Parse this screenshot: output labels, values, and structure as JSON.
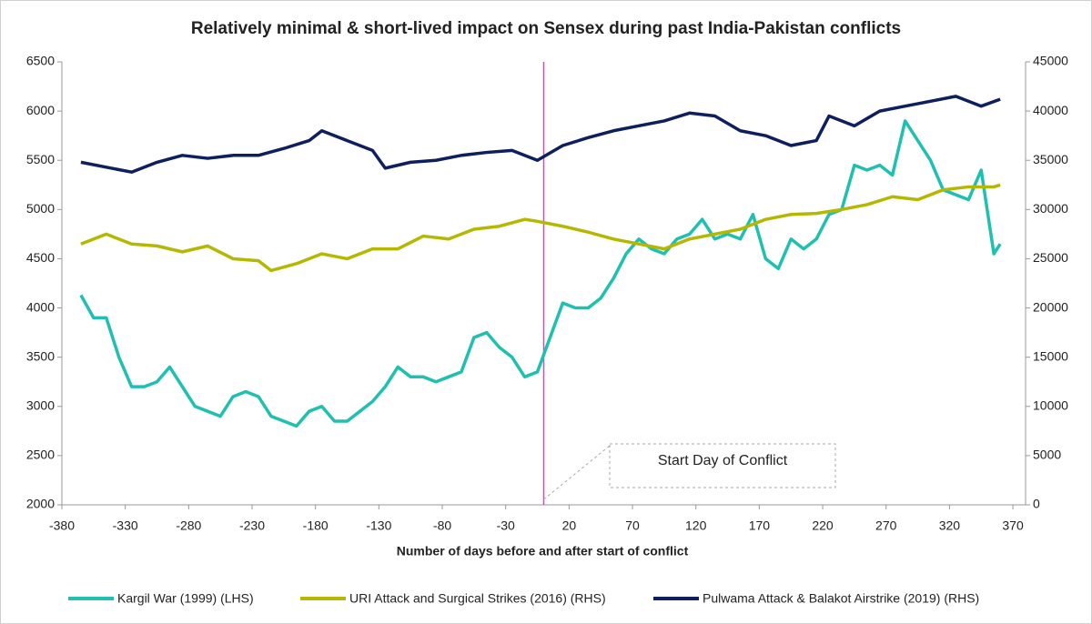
{
  "chart_data": {
    "type": "line",
    "title": "Relatively minimal & short-lived impact on Sensex during past India-Pakistan conflicts",
    "x_label": "Number of days before and after start of conflict",
    "annotation": {
      "text": "Start Day of Conflict",
      "x": 0,
      "color": "#e040d0"
    },
    "xlim": [
      -380,
      380
    ],
    "xticks": [
      -380,
      -330,
      -280,
      -230,
      -180,
      -130,
      -80,
      -30,
      20,
      70,
      120,
      170,
      220,
      270,
      320,
      370
    ],
    "ylim": [
      2000,
      6500
    ],
    "yticks": [
      2000,
      2500,
      3000,
      3500,
      4000,
      4500,
      5000,
      5500,
      6000,
      6500
    ],
    "y2lim": [
      0,
      45000
    ],
    "y2ticks": [
      0,
      5000,
      10000,
      15000,
      20000,
      25000,
      30000,
      35000,
      40000,
      45000
    ],
    "legend": "bottom",
    "series": [
      {
        "name": "Kargil War (1999) (LHS)",
        "color": "#1fc0b0",
        "axis": "y",
        "x": [
          -365,
          -355,
          -345,
          -335,
          -325,
          -315,
          -305,
          -295,
          -285,
          -275,
          -265,
          -255,
          -245,
          -235,
          -225,
          -215,
          -205,
          -195,
          -185,
          -175,
          -165,
          -155,
          -145,
          -135,
          -125,
          -115,
          -105,
          -95,
          -85,
          -75,
          -65,
          -55,
          -45,
          -35,
          -25,
          -15,
          -5,
          5,
          15,
          25,
          35,
          45,
          55,
          65,
          75,
          85,
          95,
          105,
          115,
          125,
          135,
          145,
          155,
          165,
          175,
          185,
          195,
          205,
          215,
          225,
          235,
          245,
          255,
          265,
          275,
          285,
          295,
          305,
          315,
          325,
          335,
          345,
          355,
          360
        ],
        "values": [
          4130,
          3900,
          3900,
          3500,
          3200,
          3200,
          3250,
          3400,
          3200,
          3000,
          2950,
          2900,
          3100,
          3150,
          3100,
          2900,
          2850,
          2800,
          2950,
          3000,
          2850,
          2850,
          2950,
          3050,
          3200,
          3400,
          3300,
          3300,
          3250,
          3300,
          3350,
          3700,
          3750,
          3600,
          3500,
          3300,
          3350,
          3700,
          4050,
          4000,
          4000,
          4100,
          4300,
          4550,
          4700,
          4600,
          4550,
          4700,
          4750,
          4900,
          4700,
          4750,
          4700,
          4950,
          4500,
          4400,
          4700,
          4600,
          4700,
          4950,
          5000,
          5450,
          5400,
          5450,
          5350,
          5900,
          5700,
          5500,
          5200,
          5150,
          5100,
          5400,
          4550,
          4650
        ]
      },
      {
        "name": "URI Attack and Surgical Strikes (2016) (RHS)",
        "color": "#b5b800",
        "axis": "y2",
        "x": [
          -365,
          -345,
          -325,
          -305,
          -285,
          -265,
          -245,
          -225,
          -215,
          -195,
          -175,
          -155,
          -135,
          -115,
          -95,
          -75,
          -55,
          -35,
          -15,
          -5,
          15,
          35,
          55,
          75,
          95,
          115,
          135,
          155,
          175,
          195,
          215,
          235,
          255,
          275,
          295,
          315,
          335,
          355,
          360
        ],
        "values": [
          26500,
          27500,
          26500,
          26300,
          25700,
          26300,
          25000,
          24800,
          23800,
          24500,
          25500,
          25000,
          26000,
          26000,
          27300,
          27000,
          28000,
          28300,
          29000,
          28800,
          28300,
          27700,
          27000,
          26500,
          26000,
          27000,
          27500,
          28000,
          29000,
          29500,
          29600,
          30000,
          30500,
          31300,
          31000,
          32000,
          32300,
          32300,
          32500
        ]
      },
      {
        "name": "Pulwama Attack & Balakot Airstrike (2019) (RHS)",
        "color": "#0d1f5c",
        "axis": "y2",
        "x": [
          -365,
          -345,
          -325,
          -305,
          -285,
          -265,
          -245,
          -225,
          -205,
          -185,
          -175,
          -155,
          -135,
          -125,
          -105,
          -85,
          -65,
          -45,
          -25,
          -5,
          15,
          35,
          55,
          75,
          95,
          115,
          135,
          155,
          175,
          195,
          215,
          225,
          245,
          265,
          285,
          305,
          325,
          345,
          360
        ],
        "values": [
          34800,
          34300,
          33800,
          34800,
          35500,
          35200,
          35500,
          35500,
          36200,
          37000,
          38000,
          37000,
          36000,
          34200,
          34800,
          35000,
          35500,
          35800,
          36000,
          35000,
          36500,
          37300,
          38000,
          38500,
          39000,
          39800,
          39500,
          38000,
          37500,
          36500,
          37000,
          39500,
          38500,
          40000,
          40500,
          41000,
          41500,
          40500,
          41200
        ]
      }
    ]
  }
}
